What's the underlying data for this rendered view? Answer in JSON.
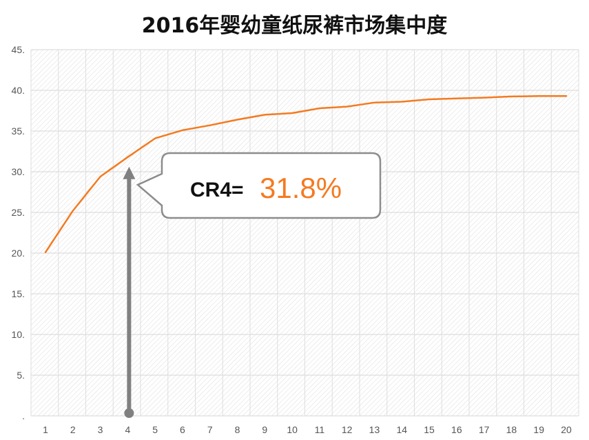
{
  "chart_data": {
    "type": "line",
    "title": "2016年婴幼童纸尿裤市场集中度",
    "x": [
      1,
      2,
      3,
      4,
      5,
      6,
      7,
      8,
      9,
      10,
      11,
      12,
      13,
      14,
      15,
      16,
      17,
      18,
      19,
      20
    ],
    "x_tick_labels": [
      "1",
      "2",
      "3",
      "4",
      "5",
      "6",
      "7",
      "8",
      "9",
      "10",
      "11",
      "12",
      "13",
      "14",
      "15",
      "16",
      "17",
      "18",
      "19",
      "20"
    ],
    "y_tick_labels": [
      ".",
      "5.",
      "10.",
      "15.",
      "20.",
      "25.",
      "30.",
      "35.",
      "40.",
      "45."
    ],
    "ylim": [
      0,
      45
    ],
    "series": [
      {
        "values": [
          20.1,
          25.2,
          29.4,
          31.8,
          34.1,
          35.1,
          35.7,
          36.4,
          37.0,
          37.2,
          37.8,
          38.0,
          38.5,
          38.6,
          38.9,
          39.0,
          39.1,
          39.25,
          39.3,
          39.3
        ],
        "color": "#f47a20"
      }
    ],
    "grid": true,
    "background_pattern": "diagonal-hatch",
    "annotation": {
      "label": "CR4=",
      "value": "31.8%",
      "value_color": "#f47a20",
      "arrow_at_x": 4,
      "arrow_color": "#808080"
    }
  }
}
